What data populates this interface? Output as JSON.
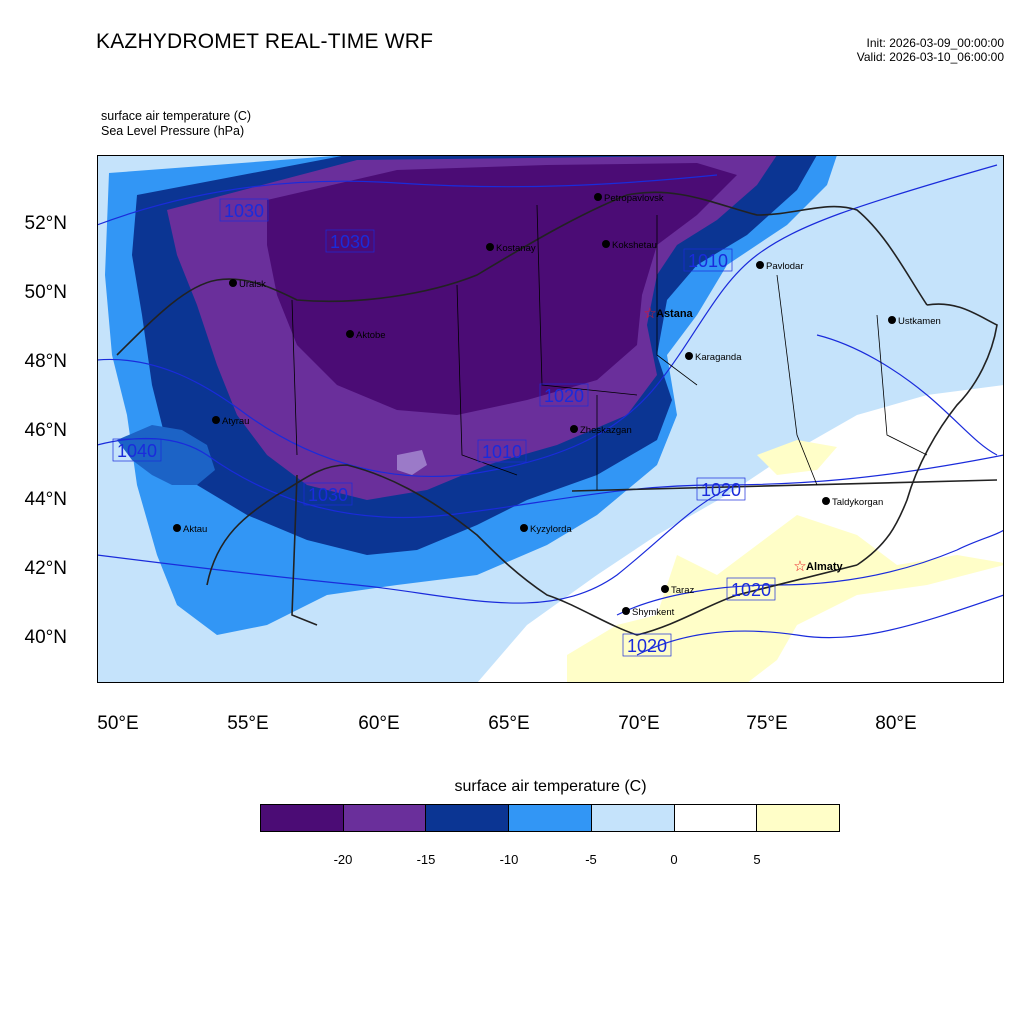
{
  "header": {
    "title": "KAZHYDROMET REAL-TIME WRF",
    "init": "Init: 2026-03-09_00:00:00",
    "valid": "Valid: 2026-03-10_06:00:00"
  },
  "fields": {
    "temperature": "surface air temperature   (C)",
    "pressure": "Sea Level Pressure   (hPa)"
  },
  "axes": {
    "lat_ticks": [
      "52°N",
      "50°N",
      "48°N",
      "46°N",
      "44°N",
      "42°N",
      "40°N"
    ],
    "lon_ticks": [
      "50°E",
      "55°E",
      "60°E",
      "65°E",
      "70°E",
      "75°E",
      "80°E"
    ]
  },
  "cities": [
    {
      "name": "Petropavlovsk",
      "capital": false
    },
    {
      "name": "Kostanay",
      "capital": false
    },
    {
      "name": "Kokshetau",
      "capital": false
    },
    {
      "name": "Pavlodar",
      "capital": false
    },
    {
      "name": "Uralsk",
      "capital": false
    },
    {
      "name": "Astana",
      "capital": true
    },
    {
      "name": "Aktobe",
      "capital": false
    },
    {
      "name": "Ustkamen",
      "capital": false
    },
    {
      "name": "Karaganda",
      "capital": false
    },
    {
      "name": "Atyrau",
      "capital": false
    },
    {
      "name": "Zheskazgan",
      "capital": false
    },
    {
      "name": "Taldykorgan",
      "capital": false
    },
    {
      "name": "Aktau",
      "capital": false
    },
    {
      "name": "Kyzylorda",
      "capital": false
    },
    {
      "name": "Almaty",
      "capital": true
    },
    {
      "name": "Taraz",
      "capital": false
    },
    {
      "name": "Shymkent",
      "capital": false
    }
  ],
  "isobar_labels": [
    "1030",
    "1030",
    "1010",
    "1040",
    "1020",
    "1030",
    "1010",
    "1020",
    "1020",
    "1020"
  ],
  "legend": {
    "title": "surface air temperature (C)",
    "labels": [
      "-20",
      "-15",
      "-10",
      "-5",
      "0",
      "5"
    ],
    "colors": [
      "#4b0c75",
      "#6a2f9b",
      "#0b3593",
      "#3296f5",
      "#c5e3fb",
      "#ffffff",
      "#fffec8"
    ]
  },
  "colors": {
    "isobar": "#1a2bdb",
    "boundary": "#222222",
    "capital_marker": "#e8141e"
  }
}
